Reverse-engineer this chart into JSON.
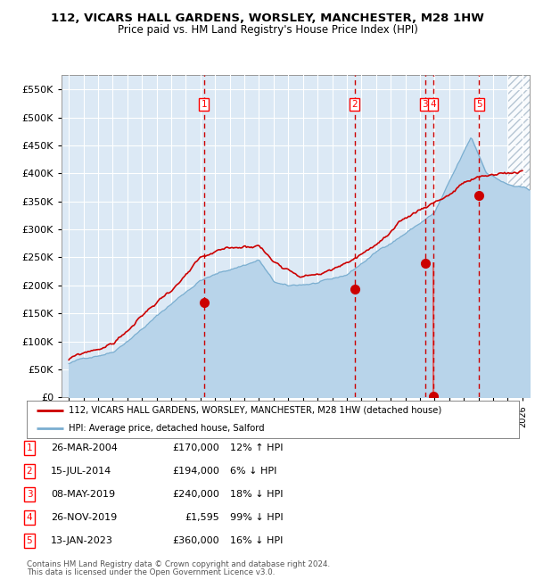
{
  "title1": "112, VICARS HALL GARDENS, WORSLEY, MANCHESTER, M28 1HW",
  "title2": "Price paid vs. HM Land Registry's House Price Index (HPI)",
  "legend_line1": "112, VICARS HALL GARDENS, WORSLEY, MANCHESTER, M28 1HW (detached house)",
  "legend_line2": "HPI: Average price, detached house, Salford",
  "footer1": "Contains HM Land Registry data © Crown copyright and database right 2024.",
  "footer2": "This data is licensed under the Open Government Licence v3.0.",
  "transactions": [
    {
      "num": 1,
      "date": "26-MAR-2004",
      "price": 170000,
      "pct": "12%",
      "dir": "↑",
      "year_x": 2004.23
    },
    {
      "num": 2,
      "date": "15-JUL-2014",
      "price": 194000,
      "pct": "6%",
      "dir": "↓",
      "year_x": 2014.54
    },
    {
      "num": 3,
      "date": "08-MAY-2019",
      "price": 240000,
      "pct": "18%",
      "dir": "↓",
      "year_x": 2019.35
    },
    {
      "num": 4,
      "date": "26-NOV-2019",
      "price": 1595,
      "pct": "99%",
      "dir": "↓",
      "year_x": 2019.9
    },
    {
      "num": 5,
      "date": "13-JAN-2023",
      "price": 360000,
      "pct": "16%",
      "dir": "↓",
      "year_x": 2023.04
    }
  ],
  "hpi_color": "#b8d4ea",
  "hpi_line_color": "#7aaed0",
  "price_color": "#cc0000",
  "marker_color": "#cc0000",
  "vline_color": "#cc0000",
  "bg_color": "#dce9f5",
  "ylim": [
    0,
    575000
  ],
  "yticks": [
    0,
    50000,
    100000,
    150000,
    200000,
    250000,
    300000,
    350000,
    400000,
    450000,
    500000,
    550000
  ],
  "xlim_start": 1994.5,
  "xlim_end": 2026.5,
  "hatch_start": 2025.0
}
